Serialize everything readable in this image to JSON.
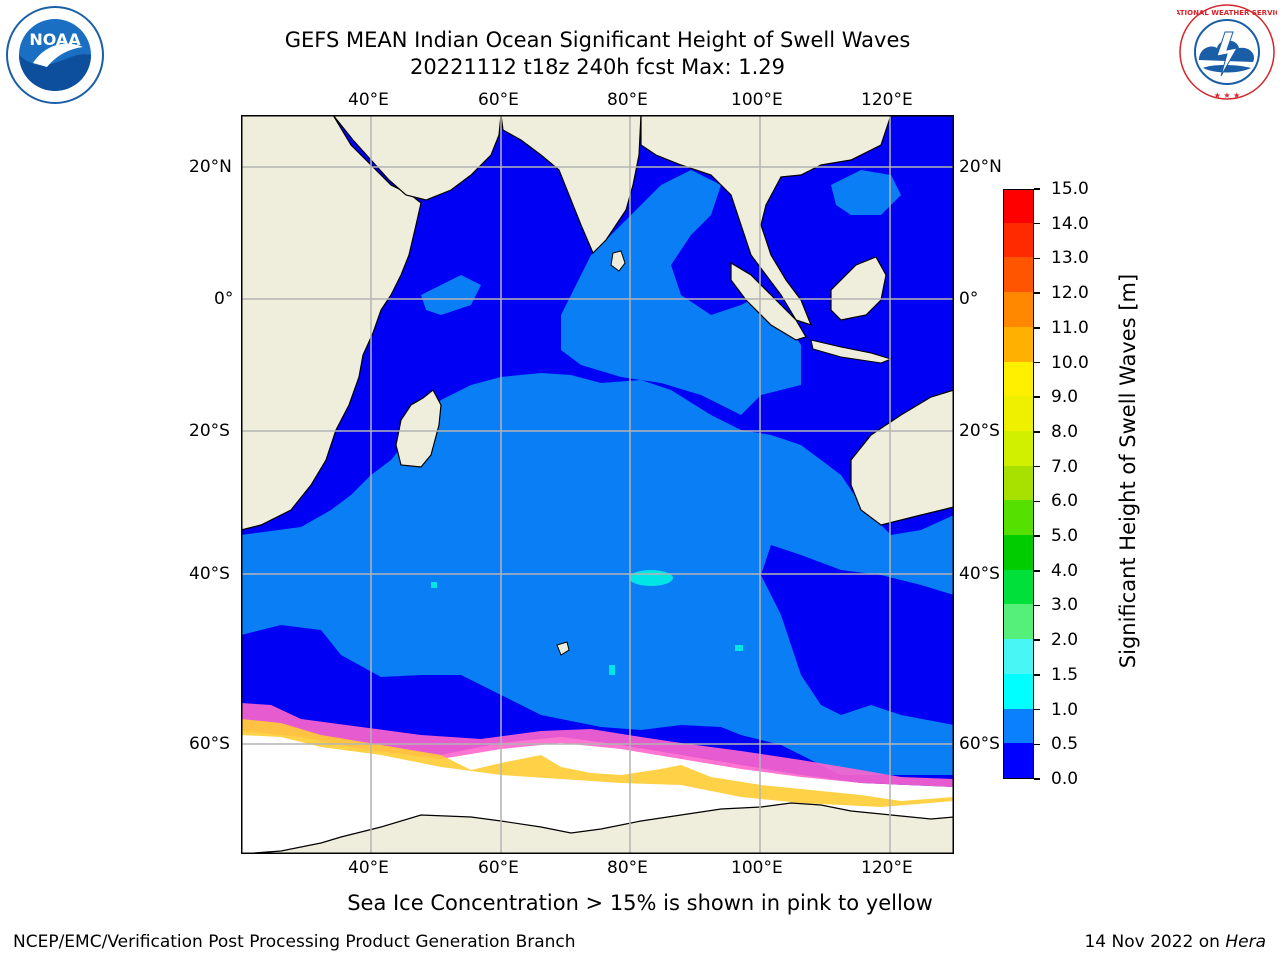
{
  "header": {
    "title_line1": "GEFS MEAN Indian Ocean Significant Height of Swell Waves",
    "title_line2": "20221112 t18z 240h fcst   Max: 1.29"
  },
  "logos": {
    "left": "NOAA",
    "right": "NATIONAL WEATHER SERVICE"
  },
  "map": {
    "lon_ticks_top": [
      "40°E",
      "60°E",
      "80°E",
      "100°E",
      "120°E"
    ],
    "lon_ticks_bottom": [
      "40°E",
      "60°E",
      "80°E",
      "100°E",
      "120°E"
    ],
    "lat_ticks_left": [
      "20°N",
      "0°",
      "20°S",
      "40°S",
      "60°S"
    ],
    "lat_ticks_right": [
      "20°N",
      "0°",
      "20°S",
      "40°S",
      "60°S"
    ],
    "colors": {
      "land": "#efeedc",
      "ocean_low": "#0000f5",
      "ocean_mid": "#0a7ff5",
      "ocean_cyan": "#00e5e5",
      "sea_ice": "#ffffff",
      "ice_pink": "#ff66cc",
      "ice_yellow": "#ffcc33",
      "grid": "#b4b4b4"
    }
  },
  "colorbar": {
    "label": "Significant Height of Swell Waves [m]",
    "ticks": [
      "15.0",
      "14.0",
      "13.0",
      "12.0",
      "11.0",
      "10.0",
      "9.0",
      "8.0",
      "7.0",
      "6.0",
      "5.0",
      "4.0",
      "3.0",
      "2.0",
      "1.5",
      "1.0",
      "0.5",
      "0.0"
    ],
    "colors_bottom_to_top": [
      "#0000ff",
      "#0a80ff",
      "#00ffff",
      "#49f6f6",
      "#9ff8ff",
      "#55f07a",
      "#00e03a",
      "#00cc00",
      "#55e000",
      "#a8e000",
      "#d0f000",
      "#eef000",
      "#fff000",
      "#ffd000",
      "#ffb000",
      "#ff8800",
      "#ff5500",
      "#ff2a00",
      "#ff0000"
    ]
  },
  "caption": "Sea Ice Concentration > 15% is shown in pink to yellow",
  "footer": {
    "left": "NCEP/EMC/Verification Post Processing Product Generation Branch",
    "right_date": "14 Nov 2022 on",
    "right_host": "Hera"
  }
}
